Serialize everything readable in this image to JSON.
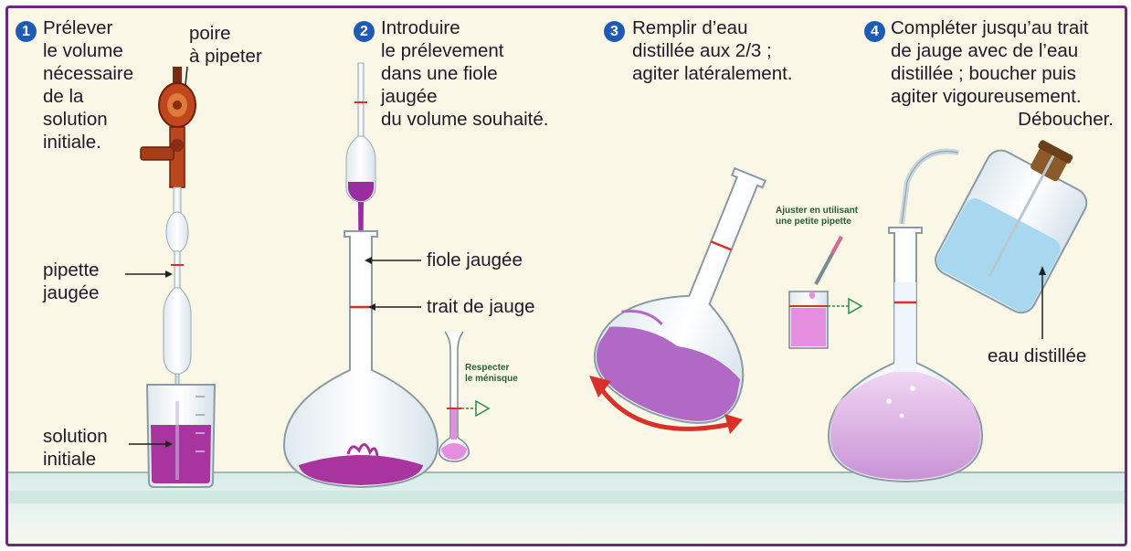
{
  "steps": [
    {
      "number": "1",
      "lines": [
        "Prélever",
        "le volume",
        "nécessaire",
        "de la",
        "solution",
        "initiale."
      ]
    },
    {
      "number": "2",
      "lines": [
        "Introduire",
        "le prélevement",
        "dans une fiole",
        "jaugée",
        "du volume souhaité."
      ]
    },
    {
      "number": "3",
      "lines": [
        "Remplir d’eau",
        "distillée aux 2/3 ;",
        "agiter latéralement."
      ]
    },
    {
      "number": "4",
      "lines": [
        "Compléter jusqu’au trait",
        "de jauge avec de l’eau",
        "distillée ; boucher puis",
        "agiter vigoureusement.",
        "Déboucher."
      ]
    }
  ],
  "labels": {
    "poire": [
      "poire",
      "à pipeter"
    ],
    "pipette": [
      "pipette",
      "jaugée"
    ],
    "solution": [
      "solution",
      "initiale"
    ],
    "fiole": "fiole jaugée",
    "trait": "trait de jauge",
    "menisque": [
      "Respecter",
      "le ménisque"
    ],
    "ajuster": [
      "Ajuster en utilisant",
      "une petite pipette"
    ],
    "eau": "eau distillée"
  },
  "colors": {
    "border": "#6b2a7a",
    "background": "#fbf7e6",
    "solution": "#b23fb5",
    "pale_solution": "#e3b8ea",
    "step_badge": "#1f5bb5",
    "arrow_red": "#d9302a",
    "wash_water": "#a8d8f0",
    "bench": "#cfe7e4"
  }
}
